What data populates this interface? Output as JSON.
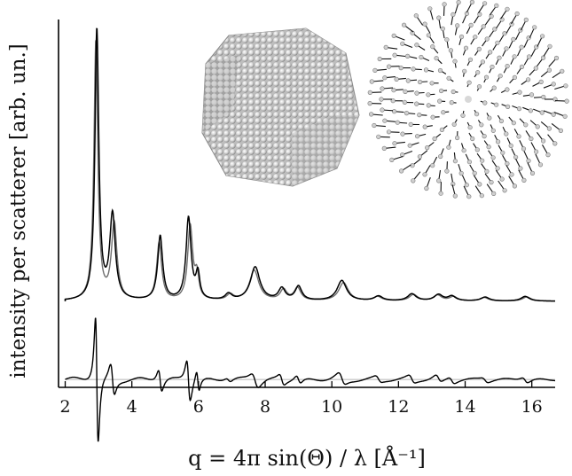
{
  "chart_data": {
    "type": "line",
    "title": "",
    "xlabel": "q = 4π sin(Θ) / λ [Å⁻¹]",
    "ylabel": "intensity per scatterer [arb. un.]",
    "xlim": [
      1.8,
      16.7
    ],
    "ylim": [
      -1.1,
      3.6
    ],
    "x_ticks": [
      2,
      4,
      6,
      8,
      10,
      12,
      14,
      16
    ],
    "x_tick_labels": [
      "2",
      "4",
      "6",
      "8",
      "10",
      "12",
      "14",
      "16"
    ],
    "y_ticks": [],
    "grid": false,
    "legend": "none",
    "baseline_offset_curves": 0.0,
    "baseline_offset_difference": -1.0,
    "peaks": [
      {
        "q": 2.95,
        "intensity": 3.45,
        "width": 0.07,
        "difference": 0.95
      },
      {
        "q": 3.42,
        "intensity": 1.08,
        "width": 0.1,
        "difference": 0.22
      },
      {
        "q": 4.85,
        "intensity": 0.82,
        "width": 0.09,
        "difference": 0.16
      },
      {
        "q": 5.7,
        "intensity": 1.05,
        "width": 0.09,
        "difference": 0.3
      },
      {
        "q": 5.98,
        "intensity": 0.32,
        "width": 0.07,
        "difference": 0.15
      },
      {
        "q": 6.9,
        "intensity": 0.08,
        "width": 0.12,
        "difference": 0.03
      },
      {
        "q": 7.7,
        "intensity": 0.43,
        "width": 0.17,
        "difference": 0.1
      },
      {
        "q": 8.5,
        "intensity": 0.15,
        "width": 0.12,
        "difference": 0.07
      },
      {
        "q": 9.0,
        "intensity": 0.18,
        "width": 0.12,
        "difference": 0.06
      },
      {
        "q": 10.3,
        "intensity": 0.26,
        "width": 0.17,
        "difference": 0.08
      },
      {
        "q": 11.4,
        "intensity": 0.06,
        "width": 0.15,
        "difference": 0.04
      },
      {
        "q": 12.4,
        "intensity": 0.09,
        "width": 0.15,
        "difference": 0.05
      },
      {
        "q": 13.2,
        "intensity": 0.08,
        "width": 0.15,
        "difference": 0.05
      },
      {
        "q": 13.6,
        "intensity": 0.06,
        "width": 0.14,
        "difference": 0.04
      },
      {
        "q": 14.6,
        "intensity": 0.05,
        "width": 0.15,
        "difference": 0.03
      },
      {
        "q": 15.8,
        "intensity": 0.06,
        "width": 0.15,
        "difference": 0.04
      }
    ],
    "series": [
      {
        "color": "#000000"
      },
      {
        "color": "#6e6e6e"
      },
      {
        "color": "#000000"
      },
      {
        "color": "#b5b5b5"
      }
    ],
    "insets": [
      "truncated-octahedron-nanoparticle",
      "atomic-displacement-field"
    ]
  }
}
